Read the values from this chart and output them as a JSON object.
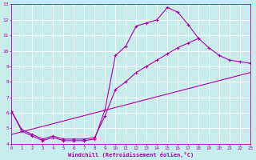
{
  "bg_color": "#c8ecec",
  "grid_color": "#ffffff",
  "line_color": "#aa00aa",
  "xlabel": "Windchill (Refroidissement éolien,°C)",
  "xlim": [
    0,
    23
  ],
  "ylim": [
    4,
    13
  ],
  "xticks": [
    0,
    1,
    2,
    3,
    4,
    5,
    6,
    7,
    8,
    9,
    10,
    11,
    12,
    13,
    14,
    15,
    16,
    17,
    18,
    19,
    20,
    21,
    22,
    23
  ],
  "yticks": [
    4,
    5,
    6,
    7,
    8,
    9,
    10,
    11,
    12,
    13
  ],
  "line1_x": [
    0,
    1,
    2,
    3,
    4,
    5,
    6,
    7,
    8,
    9,
    10,
    11,
    12,
    13,
    14,
    15,
    16,
    17,
    18
  ],
  "line1_y": [
    6.1,
    4.8,
    4.5,
    4.2,
    4.4,
    4.2,
    4.2,
    4.2,
    4.3,
    6.2,
    9.7,
    10.3,
    11.6,
    11.8,
    12.0,
    12.8,
    12.5,
    11.7,
    10.8
  ],
  "line2_x": [
    0,
    1,
    2,
    3,
    4,
    5,
    6,
    7,
    8,
    9,
    10,
    11,
    12,
    13,
    14,
    15,
    16,
    17,
    18,
    19,
    20,
    21,
    22,
    23
  ],
  "line2_y": [
    6.1,
    4.9,
    4.6,
    4.3,
    4.5,
    4.3,
    4.3,
    4.3,
    4.4,
    5.8,
    7.5,
    8.0,
    8.6,
    9.0,
    9.4,
    9.8,
    10.2,
    10.5,
    10.8,
    10.2,
    9.7,
    9.4,
    9.3,
    9.2
  ],
  "line3_x": [
    0,
    23
  ],
  "line3_y": [
    4.6,
    8.6
  ]
}
